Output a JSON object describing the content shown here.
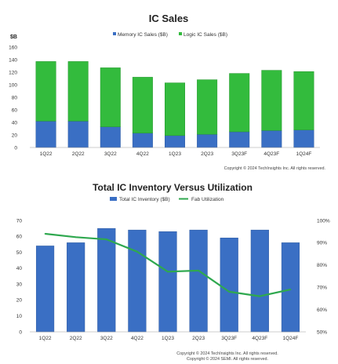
{
  "colors": {
    "memory_blue": "#3a6fc4",
    "logic_green": "#33bb3d",
    "inventory_blue": "#3a6fc4",
    "fab_line_green": "#2fa84f"
  },
  "chart_data": [
    {
      "type": "bar",
      "stacked": true,
      "title": "IC Sales",
      "ylabel": "$B",
      "ylim": [
        0,
        160
      ],
      "yticks": [
        0,
        20,
        40,
        60,
        80,
        100,
        120,
        140,
        160
      ],
      "categories": [
        "1Q22",
        "2Q22",
        "3Q22",
        "4Q22",
        "1Q23",
        "2Q23",
        "3Q23F",
        "4Q23F",
        "1Q24F"
      ],
      "series": [
        {
          "name": "Memory IC Sales ($B)",
          "values": [
            42,
            42,
            33,
            23,
            19,
            21,
            25,
            27,
            28
          ]
        },
        {
          "name": "Logic IC Sales ($B)",
          "values": [
            95,
            95,
            94,
            89,
            84,
            87,
            93,
            96,
            93
          ]
        }
      ],
      "legend": "top",
      "grid": false,
      "note": "Copyright © 2024 TechInsights Inc. All rights reserved."
    },
    {
      "type": "bar+line",
      "title": "Total IC Inventory Versus Utilization",
      "ylim": [
        0,
        70
      ],
      "yticks": [
        0,
        10,
        20,
        30,
        40,
        50,
        60,
        70
      ],
      "y2lim": [
        50,
        100
      ],
      "y2ticks": [
        "50%",
        "60%",
        "70%",
        "80%",
        "90%",
        "100%"
      ],
      "categories": [
        "1Q22",
        "2Q22",
        "3Q22",
        "4Q22",
        "1Q23",
        "2Q23",
        "3Q23F",
        "4Q23F",
        "1Q24F"
      ],
      "series": [
        {
          "name": "Total IC Inventory ($B)",
          "axis": "left",
          "values": [
            54,
            56,
            65,
            64,
            63,
            64,
            59,
            64,
            56
          ]
        },
        {
          "name": "Fab Utilization",
          "axis": "right",
          "values": [
            94,
            92.5,
            91.5,
            86,
            77,
            77.5,
            68,
            66,
            69
          ]
        }
      ],
      "legend": "top",
      "grid": false,
      "notes": [
        "Copyright © 2024 TechInsights Inc. All rights reserved.",
        "Copyright © 2024 SEMI. All rights reserved."
      ]
    }
  ]
}
